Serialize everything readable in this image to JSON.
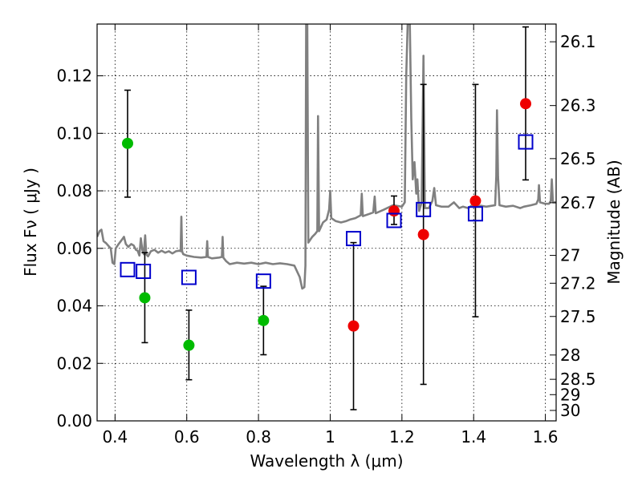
{
  "chart_data": {
    "type": "scatter",
    "xlabel": "Wavelength  λ (μm)",
    "ylabel": "Flux  Fν  ( μJy )",
    "ylabel_right": "Magnitude (AB)",
    "xlim": [
      0.35,
      1.63
    ],
    "ylim": [
      0.0,
      0.138
    ],
    "grid": true,
    "x_ticks": [
      {
        "v": 0.4,
        "label": "0.4"
      },
      {
        "v": 0.6,
        "label": "0.6"
      },
      {
        "v": 0.8,
        "label": "0.8"
      },
      {
        "v": 1.0,
        "label": "1"
      },
      {
        "v": 1.2,
        "label": "1.2"
      },
      {
        "v": 1.4,
        "label": "1.4"
      },
      {
        "v": 1.6,
        "label": "1.6"
      }
    ],
    "y_ticks": [
      {
        "v": 0.0,
        "label": "0.00"
      },
      {
        "v": 0.02,
        "label": "0.02"
      },
      {
        "v": 0.04,
        "label": "0.04"
      },
      {
        "v": 0.06,
        "label": "0.06"
      },
      {
        "v": 0.08,
        "label": "0.08"
      },
      {
        "v": 0.1,
        "label": "0.10"
      },
      {
        "v": 0.12,
        "label": "0.12"
      }
    ],
    "mag_ticks": [
      {
        "mag": 26.1,
        "label": "26.1"
      },
      {
        "mag": 26.3,
        "label": "26.3"
      },
      {
        "mag": 26.5,
        "label": "26.5"
      },
      {
        "mag": 26.7,
        "label": "26.7"
      },
      {
        "mag": 27.0,
        "label": "27"
      },
      {
        "mag": 27.2,
        "label": "27.2"
      },
      {
        "mag": 27.5,
        "label": "27.5"
      },
      {
        "mag": 28.0,
        "label": "28"
      },
      {
        "mag": 28.5,
        "label": "28.5"
      },
      {
        "mag": 29.0,
        "label": "29"
      },
      {
        "mag": 30.0,
        "label": "30"
      }
    ],
    "series": [
      {
        "name": "green detections",
        "marker": "circle",
        "color": "#00bb00",
        "points": [
          {
            "x": 0.435,
            "y": 0.0965,
            "lo": 0.0778,
            "hi": 0.115
          },
          {
            "x": 0.483,
            "y": 0.0428,
            "lo": 0.0272,
            "hi": 0.0585
          },
          {
            "x": 0.606,
            "y": 0.0263,
            "lo": 0.0143,
            "hi": 0.0385
          },
          {
            "x": 0.814,
            "y": 0.0349,
            "lo": 0.023,
            "hi": 0.0468
          }
        ]
      },
      {
        "name": "red detections",
        "marker": "circle",
        "color": "#ee0000",
        "points": [
          {
            "x": 1.065,
            "y": 0.033,
            "lo": 0.0039,
            "hi": 0.062
          },
          {
            "x": 1.178,
            "y": 0.073,
            "lo": 0.0683,
            "hi": 0.0782
          },
          {
            "x": 1.26,
            "y": 0.0648,
            "lo": 0.0127,
            "hi": 0.117
          },
          {
            "x": 1.405,
            "y": 0.0765,
            "lo": 0.0362,
            "hi": 0.117
          },
          {
            "x": 1.545,
            "y": 0.1103,
            "lo": 0.0838,
            "hi": 0.137
          }
        ]
      },
      {
        "name": "model photometry",
        "marker": "open-square",
        "color": "#0000cc",
        "points": [
          {
            "x": 0.435,
            "y": 0.0526
          },
          {
            "x": 0.479,
            "y": 0.052
          },
          {
            "x": 0.606,
            "y": 0.0499
          },
          {
            "x": 0.814,
            "y": 0.0486
          },
          {
            "x": 1.065,
            "y": 0.0634
          },
          {
            "x": 1.178,
            "y": 0.0697
          },
          {
            "x": 1.26,
            "y": 0.0735
          },
          {
            "x": 1.405,
            "y": 0.072
          },
          {
            "x": 1.545,
            "y": 0.097
          }
        ]
      },
      {
        "name": "model spectrum",
        "type": "line",
        "color": "#808080",
        "points": [
          [
            0.35,
            0.064
          ],
          [
            0.357,
            0.066
          ],
          [
            0.362,
            0.0665
          ],
          [
            0.368,
            0.0625
          ],
          [
            0.375,
            0.0618
          ],
          [
            0.382,
            0.0608
          ],
          [
            0.388,
            0.06
          ],
          [
            0.393,
            0.055
          ],
          [
            0.398,
            0.0545
          ],
          [
            0.402,
            0.06
          ],
          [
            0.41,
            0.0615
          ],
          [
            0.418,
            0.0628
          ],
          [
            0.425,
            0.064
          ],
          [
            0.43,
            0.0615
          ],
          [
            0.437,
            0.0605
          ],
          [
            0.445,
            0.0615
          ],
          [
            0.452,
            0.061
          ],
          [
            0.458,
            0.0595
          ],
          [
            0.463,
            0.0592
          ],
          [
            0.468,
            0.0575
          ],
          [
            0.472,
            0.0635
          ],
          [
            0.476,
            0.0595
          ],
          [
            0.48,
            0.058
          ],
          [
            0.484,
            0.0645
          ],
          [
            0.487,
            0.058
          ],
          [
            0.492,
            0.0572
          ],
          [
            0.5,
            0.059
          ],
          [
            0.51,
            0.0595
          ],
          [
            0.52,
            0.0585
          ],
          [
            0.53,
            0.0592
          ],
          [
            0.54,
            0.0585
          ],
          [
            0.55,
            0.059
          ],
          [
            0.56,
            0.0582
          ],
          [
            0.57,
            0.059
          ],
          [
            0.58,
            0.0592
          ],
          [
            0.583,
            0.059
          ],
          [
            0.585,
            0.071
          ],
          [
            0.587,
            0.059
          ],
          [
            0.59,
            0.058
          ],
          [
            0.6,
            0.0575
          ],
          [
            0.62,
            0.057
          ],
          [
            0.64,
            0.0568
          ],
          [
            0.655,
            0.057
          ],
          [
            0.657,
            0.0625
          ],
          [
            0.659,
            0.057
          ],
          [
            0.67,
            0.0565
          ],
          [
            0.69,
            0.0568
          ],
          [
            0.698,
            0.057
          ],
          [
            0.7,
            0.064
          ],
          [
            0.702,
            0.0568
          ],
          [
            0.71,
            0.0555
          ],
          [
            0.72,
            0.0545
          ],
          [
            0.74,
            0.055
          ],
          [
            0.76,
            0.0547
          ],
          [
            0.78,
            0.055
          ],
          [
            0.8,
            0.0545
          ],
          [
            0.82,
            0.055
          ],
          [
            0.84,
            0.0545
          ],
          [
            0.86,
            0.0548
          ],
          [
            0.88,
            0.0545
          ],
          [
            0.9,
            0.054
          ],
          [
            0.915,
            0.05
          ],
          [
            0.922,
            0.046
          ],
          [
            0.928,
            0.0465
          ],
          [
            0.931,
            0.054
          ],
          [
            0.933,
            0.138
          ],
          [
            0.936,
            0.138
          ],
          [
            0.939,
            0.062
          ],
          [
            0.95,
            0.064
          ],
          [
            0.958,
            0.065
          ],
          [
            0.964,
            0.066
          ],
          [
            0.966,
            0.106
          ],
          [
            0.969,
            0.066
          ],
          [
            0.98,
            0.069
          ],
          [
            0.99,
            0.07
          ],
          [
            0.997,
            0.0735
          ],
          [
            1.0,
            0.08
          ],
          [
            1.003,
            0.0705
          ],
          [
            1.015,
            0.0695
          ],
          [
            1.03,
            0.069
          ],
          [
            1.045,
            0.0695
          ],
          [
            1.055,
            0.07
          ],
          [
            1.07,
            0.0705
          ],
          [
            1.085,
            0.0715
          ],
          [
            1.088,
            0.079
          ],
          [
            1.091,
            0.0712
          ],
          [
            1.11,
            0.072
          ],
          [
            1.12,
            0.0725
          ],
          [
            1.124,
            0.078
          ],
          [
            1.127,
            0.0722
          ],
          [
            1.15,
            0.0735
          ],
          [
            1.175,
            0.075
          ],
          [
            1.2,
            0.0745
          ],
          [
            1.208,
            0.076
          ],
          [
            1.212,
            0.12
          ],
          [
            1.216,
            0.138
          ],
          [
            1.222,
            0.138
          ],
          [
            1.226,
            0.105
          ],
          [
            1.23,
            0.084
          ],
          [
            1.235,
            0.09
          ],
          [
            1.24,
            0.079
          ],
          [
            1.243,
            0.084
          ],
          [
            1.248,
            0.073
          ],
          [
            1.255,
            0.076
          ],
          [
            1.26,
            0.127
          ],
          [
            1.264,
            0.074
          ],
          [
            1.275,
            0.074
          ],
          [
            1.285,
            0.0765
          ],
          [
            1.29,
            0.081
          ],
          [
            1.295,
            0.075
          ],
          [
            1.31,
            0.0745
          ],
          [
            1.33,
            0.0745
          ],
          [
            1.345,
            0.076
          ],
          [
            1.36,
            0.074
          ],
          [
            1.37,
            0.0745
          ],
          [
            1.385,
            0.074
          ],
          [
            1.395,
            0.075
          ],
          [
            1.405,
            0.0745
          ],
          [
            1.42,
            0.0748
          ],
          [
            1.435,
            0.0745
          ],
          [
            1.45,
            0.0748
          ],
          [
            1.46,
            0.075
          ],
          [
            1.463,
            0.085
          ],
          [
            1.465,
            0.108
          ],
          [
            1.468,
            0.085
          ],
          [
            1.472,
            0.075
          ],
          [
            1.49,
            0.0745
          ],
          [
            1.51,
            0.0748
          ],
          [
            1.53,
            0.074
          ],
          [
            1.54,
            0.0745
          ],
          [
            1.56,
            0.075
          ],
          [
            1.575,
            0.0755
          ],
          [
            1.58,
            0.077
          ],
          [
            1.582,
            0.082
          ],
          [
            1.585,
            0.076
          ],
          [
            1.6,
            0.0755
          ],
          [
            1.61,
            0.0755
          ],
          [
            1.615,
            0.0765
          ],
          [
            1.618,
            0.084
          ],
          [
            1.621,
            0.076
          ],
          [
            1.63,
            0.076
          ]
        ]
      }
    ]
  }
}
